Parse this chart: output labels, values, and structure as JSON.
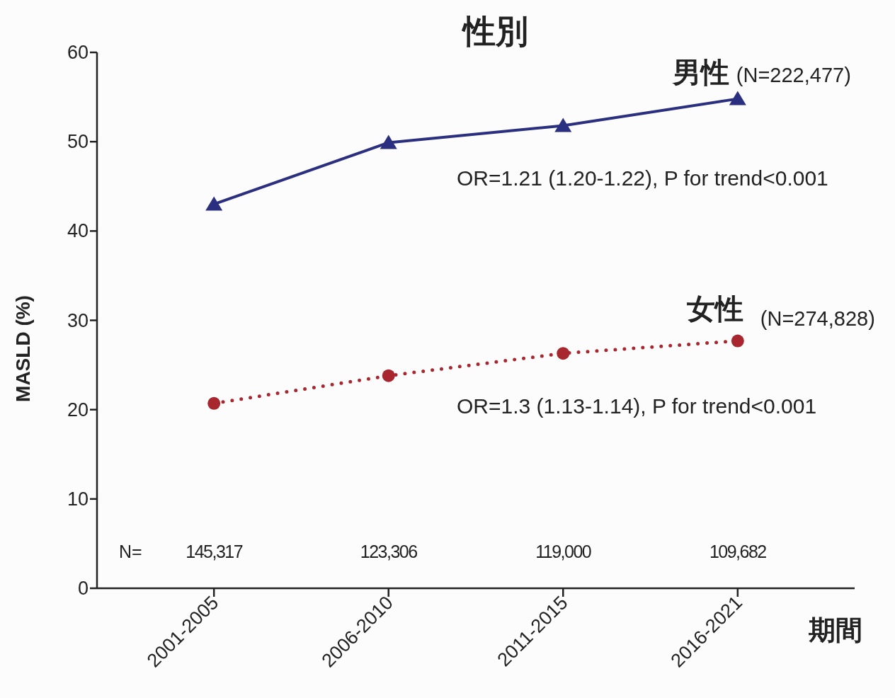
{
  "chart_data": {
    "type": "line",
    "title": "性別",
    "xlabel": "期間",
    "ylabel": "MASLD (%)",
    "categories": [
      "2001-2005",
      "2006-2010",
      "2011-2015",
      "2016-2021"
    ],
    "series": [
      {
        "name": "男性",
        "color": "#2b2f80",
        "values": [
          43.0,
          49.9,
          51.8,
          54.8
        ],
        "marker": "triangle",
        "line_style": "solid"
      },
      {
        "name": "女性",
        "color": "#a8262e",
        "values": [
          20.7,
          23.8,
          26.3,
          27.7
        ],
        "marker": "circle",
        "line_style": "dotted"
      }
    ],
    "ylim": [
      0,
      60
    ],
    "yticks": [
      0,
      10,
      20,
      30,
      40,
      50,
      60
    ],
    "grid": false,
    "annotations": [
      "(N=222,477)",
      "(N=274,828)",
      "OR=1.21 (1.20-1.22), P for trend<0.001",
      "OR=1.3 (1.13-1.14), P for trend<0.001",
      "N=",
      "145,317",
      "123,306",
      "119,000",
      "109,682"
    ]
  }
}
